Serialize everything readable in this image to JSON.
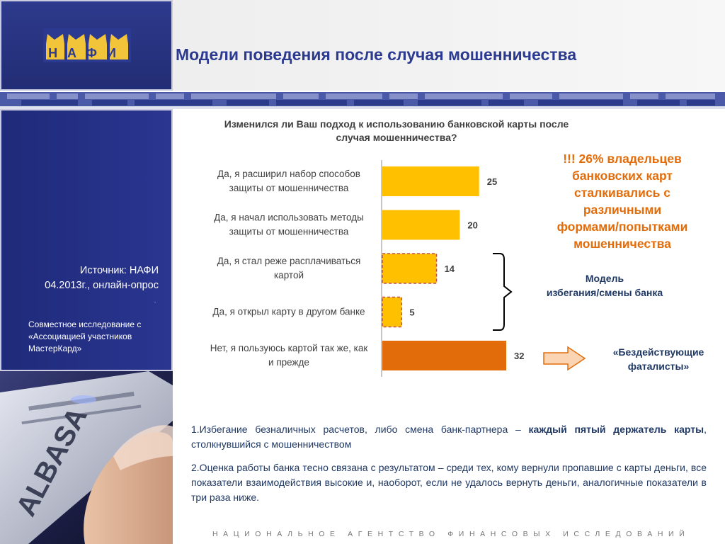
{
  "logo_text": "НАФИ",
  "title": "Модели поведения после случая мошенничества",
  "question_lines": [
    "Изменился ли Ваш подход к использованию банковской карты после",
    "случая мошенничества?"
  ],
  "source_lines": [
    "Источник:  НАФИ",
    "04.2013г., онлайн-опрос"
  ],
  "dot": ".",
  "joint_lines": [
    "Совместное исследование с",
    "«Ассоциацией участников",
    "МастерКард»"
  ],
  "photo_card_text": "ALBASA",
  "callout_lines": [
    "!!! 26% владельцев",
    "банковских карт",
    "сталкивались с",
    "различными",
    "формами/попытками",
    "мошенничества"
  ],
  "model_lines": [
    "Модель",
    "избегания/смены банка"
  ],
  "fatalists_lines": [
    "«Бездействующие",
    "фаталисты»"
  ],
  "notes": {
    "p1_text": "1.Избегание безналичных расчетов, либо смена банк-партнера – ",
    "p1_bold": "каждый пятый держатель карты",
    "p1_tail": ", столкнувшийся с мошенничеством",
    "p2": "2.Оценка работы банка тесно связана с результатом – среди тех, кому вернули пропавшие с карты деньги, все показатели взаимодействия высокие и, наоборот, если не удалось вернуть деньги, аналогичные показатели в три раза ниже."
  },
  "footer": "НАЦИОНАЛЬНОЕ АГЕНТСТВО ФИНАНСОВЫХ ИССЛЕДОВАНИЙ",
  "colors": {
    "brand_blue": "#2b3990",
    "bar_yellow": "#ffc000",
    "bar_orange": "#e36c0a",
    "accent_orange": "#e36c0a",
    "navy_text": "#1f3864"
  },
  "chart_data": {
    "type": "bar",
    "orientation": "horizontal",
    "title": "Изменился ли Ваш подход к использованию банковской карты после случая мошенничества?",
    "categories": [
      [
        "Да, я расширил набор способов",
        "защиты от мошенничества"
      ],
      [
        "Да, я начал использовать методы",
        "защиты от мошенничества"
      ],
      [
        "Да, я стал реже расплачиваться",
        "картой"
      ],
      [
        "Да, я открыл карту в другом банке"
      ],
      [
        "Нет, я пользуюсь картой так же, как",
        "и прежде"
      ]
    ],
    "values": [
      25,
      20,
      14,
      5,
      32
    ],
    "bar_styles": [
      "solid",
      "solid",
      "dashed",
      "dashed",
      "solid-orange"
    ],
    "xlim": [
      0,
      32
    ],
    "grid": false,
    "legend": "none"
  }
}
